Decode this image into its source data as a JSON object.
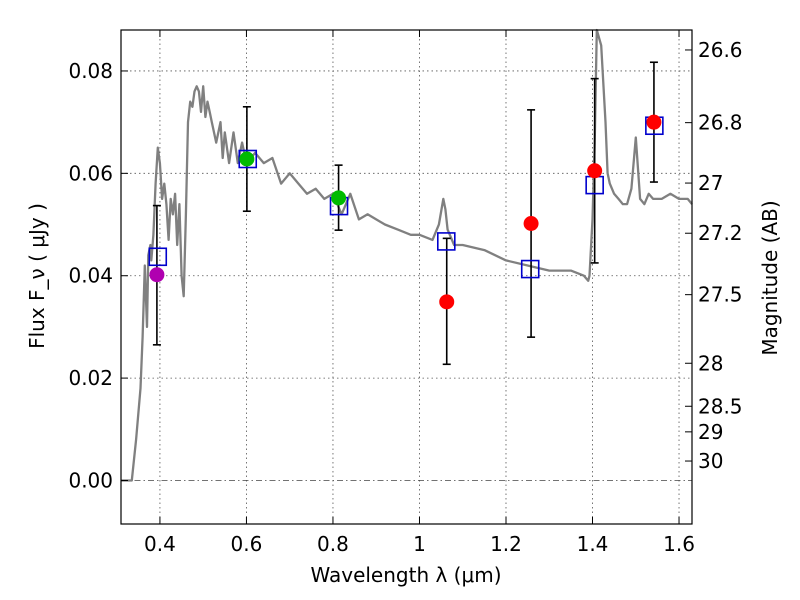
{
  "chart_data": {
    "type": "scatter",
    "xlabel": "Wavelength  λ (μm)",
    "ylabel": "Flux  F_ν  ( μJy )",
    "y2label": "Magnitude (AB)",
    "xlim": [
      0.31,
      1.63
    ],
    "ylim": [
      -0.0085,
      0.088
    ],
    "x_ticks": [
      0.4,
      0.6,
      0.8,
      1.0,
      1.2,
      1.4,
      1.6
    ],
    "x_tick_labels": [
      "0.4",
      "0.6",
      "0.8",
      "1",
      "1.2",
      "1.4",
      "1.6"
    ],
    "y_ticks": [
      0.0,
      0.02,
      0.04,
      0.06,
      0.08
    ],
    "y_tick_labels": [
      "0.00",
      "0.02",
      "0.04",
      "0.06",
      "0.08"
    ],
    "mag_ticks": [
      {
        "flux": 0.0841,
        "label": "26.6"
      },
      {
        "flux": 0.0699,
        "label": "26.8"
      },
      {
        "flux": 0.0581,
        "label": "27"
      },
      {
        "flux": 0.0483,
        "label": "27.2"
      },
      {
        "flux": 0.0363,
        "label": "27.5"
      },
      {
        "flux": 0.0229,
        "label": "28"
      },
      {
        "flux": 0.0145,
        "label": "28.5"
      },
      {
        "flux": 0.0095,
        "label": "29"
      },
      {
        "flux": 0.0038,
        "label": "30"
      }
    ],
    "grid": true,
    "model_sed": {
      "name": "model SED",
      "color": "#808080",
      "x": [
        0.31,
        0.335,
        0.345,
        0.355,
        0.36,
        0.365,
        0.37,
        0.373,
        0.378,
        0.38,
        0.385,
        0.39,
        0.395,
        0.4,
        0.405,
        0.41,
        0.415,
        0.42,
        0.425,
        0.43,
        0.435,
        0.44,
        0.445,
        0.45,
        0.455,
        0.46,
        0.465,
        0.47,
        0.475,
        0.48,
        0.485,
        0.49,
        0.495,
        0.5,
        0.505,
        0.51,
        0.515,
        0.52,
        0.53,
        0.54,
        0.545,
        0.55,
        0.56,
        0.57,
        0.58,
        0.59,
        0.6,
        0.62,
        0.64,
        0.66,
        0.68,
        0.7,
        0.72,
        0.74,
        0.76,
        0.78,
        0.8,
        0.82,
        0.84,
        0.86,
        0.88,
        0.9,
        0.92,
        0.95,
        0.98,
        1.0,
        1.03,
        1.045,
        1.055,
        1.06,
        1.065,
        1.08,
        1.1,
        1.15,
        1.2,
        1.25,
        1.3,
        1.35,
        1.38,
        1.39,
        1.393,
        1.4,
        1.405,
        1.41,
        1.42,
        1.43,
        1.435,
        1.44,
        1.45,
        1.46,
        1.47,
        1.48,
        1.49,
        1.5,
        1.51,
        1.52,
        1.53,
        1.54,
        1.56,
        1.58,
        1.6,
        1.62,
        1.63
      ],
      "y": [
        0.0,
        0.0,
        0.008,
        0.018,
        0.028,
        0.042,
        0.03,
        0.044,
        0.046,
        0.043,
        0.048,
        0.058,
        0.065,
        0.062,
        0.055,
        0.058,
        0.054,
        0.047,
        0.055,
        0.052,
        0.056,
        0.046,
        0.054,
        0.04,
        0.036,
        0.052,
        0.07,
        0.074,
        0.073,
        0.076,
        0.077,
        0.076,
        0.072,
        0.077,
        0.071,
        0.074,
        0.072,
        0.07,
        0.066,
        0.07,
        0.063,
        0.068,
        0.062,
        0.068,
        0.062,
        0.066,
        0.062,
        0.064,
        0.062,
        0.063,
        0.058,
        0.06,
        0.058,
        0.056,
        0.057,
        0.055,
        0.056,
        0.052,
        0.056,
        0.051,
        0.052,
        0.051,
        0.05,
        0.049,
        0.048,
        0.048,
        0.047,
        0.05,
        0.055,
        0.053,
        0.049,
        0.046,
        0.046,
        0.045,
        0.043,
        0.042,
        0.041,
        0.041,
        0.04,
        0.039,
        0.04,
        0.051,
        0.066,
        0.091,
        0.085,
        0.07,
        0.06,
        0.058,
        0.056,
        0.055,
        0.054,
        0.054,
        0.057,
        0.067,
        0.055,
        0.054,
        0.056,
        0.055,
        0.055,
        0.056,
        0.055,
        0.055,
        0.054
      ]
    },
    "series": [
      {
        "name": "model photometry",
        "marker": "open-square",
        "color": "#0000cc",
        "points": [
          {
            "x": 0.395,
            "y": 0.0437
          },
          {
            "x": 0.603,
            "y": 0.0628
          },
          {
            "x": 0.814,
            "y": 0.0536
          },
          {
            "x": 1.062,
            "y": 0.0467
          },
          {
            "x": 1.256,
            "y": 0.0413
          },
          {
            "x": 1.405,
            "y": 0.0577
          },
          {
            "x": 1.543,
            "y": 0.0693
          }
        ]
      },
      {
        "name": "observed flux",
        "marker": "filled-circle",
        "points": [
          {
            "x": 0.393,
            "y": 0.0402,
            "err": [
              0.0137,
              0.0135
            ],
            "color": "#b000b0"
          },
          {
            "x": 0.601,
            "y": 0.0628,
            "err": [
              0.0102,
              0.0102
            ],
            "color": "#00bb00"
          },
          {
            "x": 0.813,
            "y": 0.0552,
            "err": [
              0.0063,
              0.0064
            ],
            "color": "#00bb00"
          },
          {
            "x": 1.063,
            "y": 0.0349,
            "err": [
              0.0122,
              0.0124
            ],
            "color": "#ff0000"
          },
          {
            "x": 1.258,
            "y": 0.0502,
            "err": [
              0.0222,
              0.0222
            ],
            "color": "#ff0000"
          },
          {
            "x": 1.405,
            "y": 0.0605,
            "err": [
              0.018,
              0.018
            ],
            "color": "#ff0000"
          },
          {
            "x": 1.542,
            "y": 0.07,
            "err": [
              0.0117,
              0.0117
            ],
            "color": "#ff0000"
          }
        ]
      }
    ]
  }
}
